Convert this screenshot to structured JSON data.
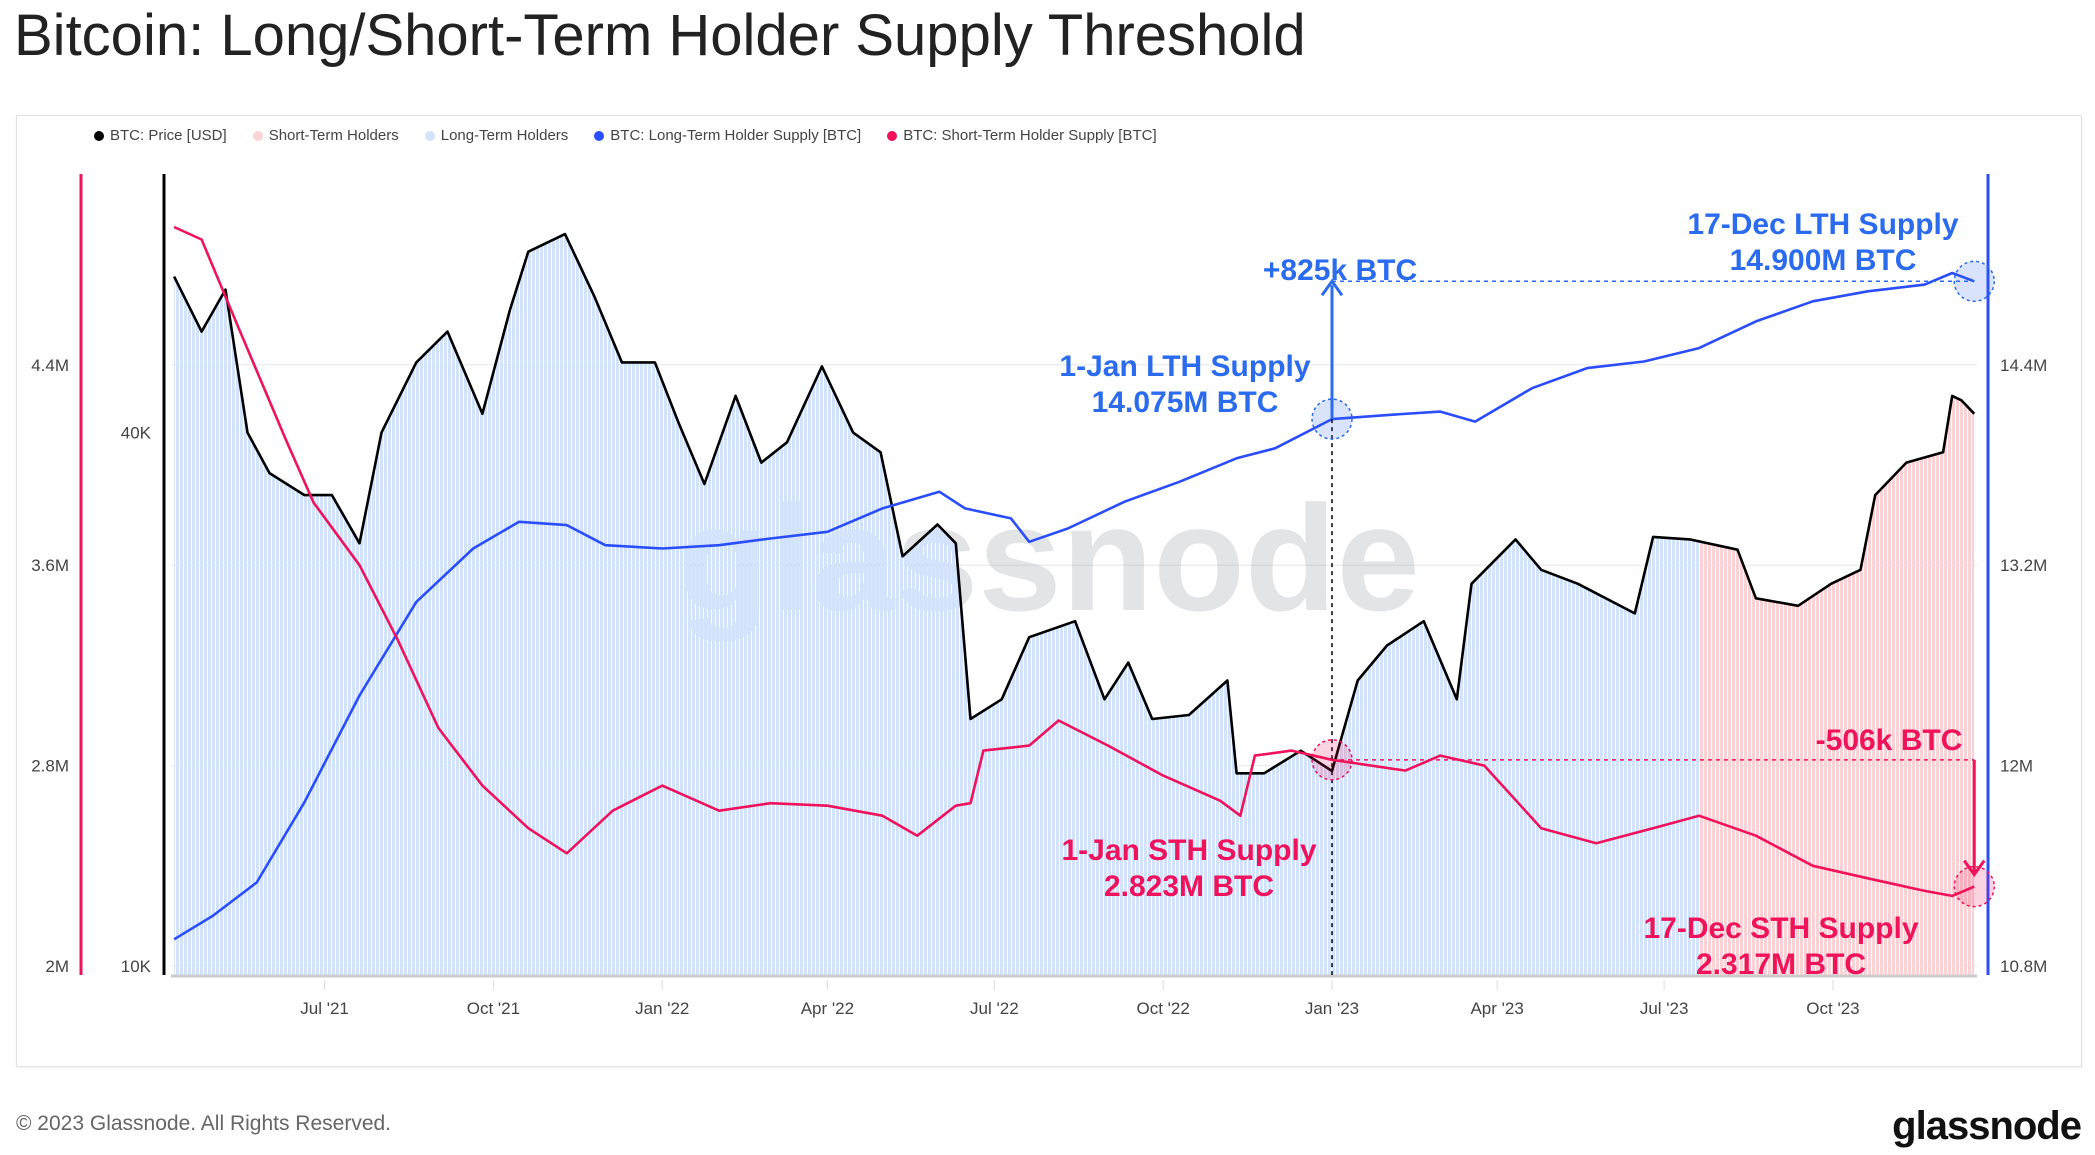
{
  "title": "Bitcoin: Long/Short-Term Holder Supply Threshold",
  "legend": [
    {
      "label": "BTC: Price [USD]",
      "color": "#000000"
    },
    {
      "label": "Short-Term Holders",
      "color": "#fbd3d6"
    },
    {
      "label": "Long-Term Holders",
      "color": "#d3e3fb"
    },
    {
      "label": "BTC: Long-Term Holder Supply [BTC]",
      "color": "#2a4dff"
    },
    {
      "label": "BTC: Short-Term Holder Supply [BTC]",
      "color": "#f0125a"
    }
  ],
  "footer": "© 2023 Glassnode. All Rights Reserved.",
  "logo": "glassnode",
  "watermark": "glassnode",
  "chart_data": {
    "type": "line",
    "title": "Bitcoin: Long/Short-Term Holder Supply Threshold",
    "x_ticks": [
      {
        "label": "Jul '21",
        "date": "2021-07-01"
      },
      {
        "label": "Oct '21",
        "date": "2021-10-01"
      },
      {
        "label": "Jan '22",
        "date": "2022-01-01"
      },
      {
        "label": "Apr '22",
        "date": "2022-04-01"
      },
      {
        "label": "Jul '22",
        "date": "2022-07-01"
      },
      {
        "label": "Oct '22",
        "date": "2022-10-01"
      },
      {
        "label": "Jan '23",
        "date": "2023-01-01"
      },
      {
        "label": "Apr '23",
        "date": "2023-04-01"
      },
      {
        "label": "Jul '23",
        "date": "2023-07-01"
      },
      {
        "label": "Oct '23",
        "date": "2023-10-01"
      }
    ],
    "sth_axis": {
      "ticks": [
        {
          "v": 2.0,
          "label": "2M"
        },
        {
          "v": 2.8,
          "label": "2.8M"
        },
        {
          "v": 3.6,
          "label": "3.6M"
        },
        {
          "v": 4.4,
          "label": "4.4M"
        }
      ],
      "unit": "M BTC"
    },
    "price_axis": {
      "scale": "log",
      "ticks": [
        {
          "v": 10000,
          "label": "10K"
        },
        {
          "v": 40000,
          "label": "40K"
        }
      ]
    },
    "lth_axis": {
      "ticks": [
        {
          "v": 10.8,
          "label": "10.8M"
        },
        {
          "v": 12.0,
          "label": "12M"
        },
        {
          "v": 13.2,
          "label": "13.2M"
        },
        {
          "v": 14.4,
          "label": "14.4M"
        }
      ],
      "unit": "M BTC"
    },
    "regime_switch_date": "2023-07-20",
    "series": [
      {
        "name": "BTC: Price [USD]",
        "axis": "price",
        "color": "#000000",
        "points": [
          [
            "2021-04-10",
            60000
          ],
          [
            "2021-04-25",
            52000
          ],
          [
            "2021-05-08",
            58000
          ],
          [
            "2021-05-20",
            40000
          ],
          [
            "2021-06-01",
            36000
          ],
          [
            "2021-06-20",
            34000
          ],
          [
            "2021-07-05",
            34000
          ],
          [
            "2021-07-20",
            30000
          ],
          [
            "2021-08-01",
            40000
          ],
          [
            "2021-08-20",
            48000
          ],
          [
            "2021-09-06",
            52000
          ],
          [
            "2021-09-25",
            42000
          ],
          [
            "2021-10-10",
            55000
          ],
          [
            "2021-10-20",
            64000
          ],
          [
            "2021-11-09",
            67000
          ],
          [
            "2021-11-25",
            57000
          ],
          [
            "2021-12-10",
            48000
          ],
          [
            "2021-12-28",
            48000
          ],
          [
            "2022-01-10",
            41000
          ],
          [
            "2022-01-24",
            35000
          ],
          [
            "2022-02-10",
            44000
          ],
          [
            "2022-02-24",
            37000
          ],
          [
            "2022-03-10",
            39000
          ],
          [
            "2022-03-29",
            47500
          ],
          [
            "2022-04-15",
            40000
          ],
          [
            "2022-04-30",
            38000
          ],
          [
            "2022-05-12",
            29000
          ],
          [
            "2022-05-31",
            31500
          ],
          [
            "2022-06-10",
            30000
          ],
          [
            "2022-06-18",
            19000
          ],
          [
            "2022-07-05",
            20000
          ],
          [
            "2022-07-20",
            23500
          ],
          [
            "2022-08-14",
            24500
          ],
          [
            "2022-08-30",
            20000
          ],
          [
            "2022-09-12",
            22000
          ],
          [
            "2022-09-25",
            19000
          ],
          [
            "2022-10-15",
            19200
          ],
          [
            "2022-11-05",
            21000
          ],
          [
            "2022-11-10",
            16500
          ],
          [
            "2022-11-25",
            16500
          ],
          [
            "2022-12-15",
            17500
          ],
          [
            "2023-01-01",
            16600
          ],
          [
            "2023-01-15",
            21000
          ],
          [
            "2023-01-31",
            23000
          ],
          [
            "2023-02-20",
            24500
          ],
          [
            "2023-03-10",
            20000
          ],
          [
            "2023-03-18",
            27000
          ],
          [
            "2023-04-11",
            30300
          ],
          [
            "2023-04-25",
            28000
          ],
          [
            "2023-05-15",
            27000
          ],
          [
            "2023-06-15",
            25000
          ],
          [
            "2023-06-25",
            30500
          ],
          [
            "2023-07-15",
            30300
          ],
          [
            "2023-08-10",
            29500
          ],
          [
            "2023-08-20",
            26000
          ],
          [
            "2023-09-12",
            25500
          ],
          [
            "2023-09-30",
            27000
          ],
          [
            "2023-10-16",
            28000
          ],
          [
            "2023-10-24",
            34000
          ],
          [
            "2023-11-10",
            37000
          ],
          [
            "2023-11-30",
            38000
          ],
          [
            "2023-12-05",
            44000
          ],
          [
            "2023-12-10",
            43500
          ],
          [
            "2023-12-17",
            42000
          ]
        ]
      },
      {
        "name": "BTC: Long-Term Holder Supply [BTC]",
        "axis": "lth",
        "color": "#2a4dff",
        "points": [
          [
            "2021-04-10",
            10.96
          ],
          [
            "2021-05-01",
            11.1
          ],
          [
            "2021-05-25",
            11.3
          ],
          [
            "2021-06-20",
            11.78
          ],
          [
            "2021-07-20",
            12.42
          ],
          [
            "2021-08-20",
            12.98
          ],
          [
            "2021-09-20",
            13.3
          ],
          [
            "2021-10-15",
            13.46
          ],
          [
            "2021-11-10",
            13.44
          ],
          [
            "2021-12-01",
            13.32
          ],
          [
            "2022-01-01",
            13.3
          ],
          [
            "2022-02-01",
            13.32
          ],
          [
            "2022-03-01",
            13.36
          ],
          [
            "2022-04-01",
            13.4
          ],
          [
            "2022-05-01",
            13.54
          ],
          [
            "2022-06-01",
            13.64
          ],
          [
            "2022-06-15",
            13.54
          ],
          [
            "2022-07-10",
            13.48
          ],
          [
            "2022-07-20",
            13.34
          ],
          [
            "2022-08-10",
            13.42
          ],
          [
            "2022-09-10",
            13.58
          ],
          [
            "2022-10-10",
            13.7
          ],
          [
            "2022-11-10",
            13.84
          ],
          [
            "2022-12-01",
            13.9
          ],
          [
            "2023-01-01",
            14.075
          ],
          [
            "2023-02-01",
            14.1
          ],
          [
            "2023-03-01",
            14.12
          ],
          [
            "2023-03-20",
            14.06
          ],
          [
            "2023-04-20",
            14.26
          ],
          [
            "2023-05-20",
            14.38
          ],
          [
            "2023-06-20",
            14.42
          ],
          [
            "2023-07-20",
            14.5
          ],
          [
            "2023-08-20",
            14.66
          ],
          [
            "2023-09-20",
            14.78
          ],
          [
            "2023-10-20",
            14.84
          ],
          [
            "2023-11-20",
            14.88
          ],
          [
            "2023-12-05",
            14.95
          ],
          [
            "2023-12-17",
            14.9
          ]
        ]
      },
      {
        "name": "BTC: Short-Term Holder Supply [BTC]",
        "axis": "sth",
        "color": "#f0125a",
        "points": [
          [
            "2021-04-10",
            4.95
          ],
          [
            "2021-04-25",
            4.9
          ],
          [
            "2021-05-15",
            4.55
          ],
          [
            "2021-06-10",
            4.1
          ],
          [
            "2021-06-25",
            3.85
          ],
          [
            "2021-07-20",
            3.6
          ],
          [
            "2021-08-10",
            3.3
          ],
          [
            "2021-09-01",
            2.95
          ],
          [
            "2021-09-25",
            2.72
          ],
          [
            "2021-10-20",
            2.55
          ],
          [
            "2021-11-10",
            2.45
          ],
          [
            "2021-12-05",
            2.62
          ],
          [
            "2022-01-01",
            2.72
          ],
          [
            "2022-02-01",
            2.62
          ],
          [
            "2022-03-01",
            2.65
          ],
          [
            "2022-04-01",
            2.64
          ],
          [
            "2022-05-01",
            2.6
          ],
          [
            "2022-05-20",
            2.52
          ],
          [
            "2022-06-10",
            2.64
          ],
          [
            "2022-06-18",
            2.65
          ],
          [
            "2022-06-25",
            2.86
          ],
          [
            "2022-07-20",
            2.88
          ],
          [
            "2022-08-05",
            2.98
          ],
          [
            "2022-09-01",
            2.88
          ],
          [
            "2022-10-01",
            2.76
          ],
          [
            "2022-11-01",
            2.66
          ],
          [
            "2022-11-12",
            2.6
          ],
          [
            "2022-11-20",
            2.84
          ],
          [
            "2022-12-10",
            2.86
          ],
          [
            "2023-01-01",
            2.823
          ],
          [
            "2023-02-10",
            2.78
          ],
          [
            "2023-03-01",
            2.84
          ],
          [
            "2023-03-25",
            2.8
          ],
          [
            "2023-04-25",
            2.55
          ],
          [
            "2023-05-25",
            2.49
          ],
          [
            "2023-06-25",
            2.55
          ],
          [
            "2023-07-20",
            2.6
          ],
          [
            "2023-08-20",
            2.52
          ],
          [
            "2023-09-20",
            2.4
          ],
          [
            "2023-10-20",
            2.35
          ],
          [
            "2023-11-20",
            2.3
          ],
          [
            "2023-12-05",
            2.28
          ],
          [
            "2023-12-17",
            2.317
          ]
        ]
      }
    ],
    "annotations": {
      "lth_change": "+825k BTC",
      "lth_start_label": "1-Jan LTH Supply",
      "lth_start_value": "14.075M BTC",
      "lth_end_label": "17-Dec LTH Supply",
      "lth_end_value": "14.900M BTC",
      "sth_change": "-506k BTC",
      "sth_start_label": "1-Jan STH Supply",
      "sth_start_value": "2.823M BTC",
      "sth_end_label": "17-Dec STH Supply",
      "sth_end_value": "2.317M BTC"
    }
  }
}
